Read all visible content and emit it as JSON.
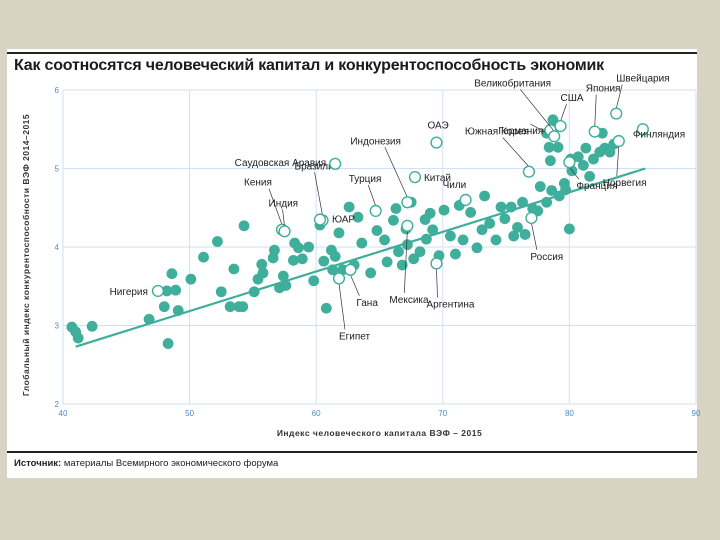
{
  "title": "Как соотносятся человеческий капитал и конкурентоспособность экономик",
  "source": {
    "label": "Источник:",
    "text": "материалы Всемирного экономического форума"
  },
  "colors": {
    "point": "#3fae9a",
    "highlight_fill": "#ffffff",
    "trend": "#3fae9a",
    "grid": "#cfe1f2",
    "tick": "#4a8ec8",
    "leader": "#333333"
  },
  "chart_data": {
    "type": "scatter",
    "xlabel": "Индекс человеческого капитала ВЭФ – 2015",
    "ylabel": "Глобальный индекс конкурентоспособности ВЭФ 2014–2015",
    "xlim": [
      40,
      90
    ],
    "ylim": [
      2,
      6
    ],
    "xticks": [
      "40",
      "50",
      "60",
      "70",
      "80",
      "90"
    ],
    "yticks": [
      "2",
      "3",
      "4",
      "5",
      "6"
    ],
    "grid": true,
    "trendline": {
      "x": [
        41,
        86
      ],
      "y": [
        2.73,
        5.0
      ]
    },
    "labeled_points": [
      {
        "name": "Нигерия",
        "x": 47.5,
        "y": 3.44
      },
      {
        "name": "Кения",
        "x": 57.3,
        "y": 4.22
      },
      {
        "name": "Индия",
        "x": 57.5,
        "y": 4.2
      },
      {
        "name": "Бразилия",
        "x": 60.5,
        "y": 4.34
      },
      {
        "name": "ЮАР",
        "x": 60.3,
        "y": 4.35
      },
      {
        "name": "Саудовская Аравия",
        "x": 61.5,
        "y": 5.06
      },
      {
        "name": "Египет",
        "x": 61.8,
        "y": 3.6
      },
      {
        "name": "Гана",
        "x": 62.7,
        "y": 3.71
      },
      {
        "name": "Турция",
        "x": 64.7,
        "y": 4.46
      },
      {
        "name": "Индонезия",
        "x": 67.2,
        "y": 4.57
      },
      {
        "name": "Мексика",
        "x": 67.2,
        "y": 4.27
      },
      {
        "name": "Китай",
        "x": 67.8,
        "y": 4.89
      },
      {
        "name": "ОАЭ",
        "x": 69.5,
        "y": 5.33
      },
      {
        "name": "Аргентина",
        "x": 69.5,
        "y": 3.79
      },
      {
        "name": "Чили",
        "x": 71.8,
        "y": 4.6
      },
      {
        "name": "Россия",
        "x": 77.0,
        "y": 4.37
      },
      {
        "name": "Южная Корея",
        "x": 76.8,
        "y": 4.96
      },
      {
        "name": "Германия",
        "x": 78.5,
        "y": 5.49
      },
      {
        "name": "Великобритания",
        "x": 78.8,
        "y": 5.41
      },
      {
        "name": "США",
        "x": 79.3,
        "y": 5.54
      },
      {
        "name": "Франция",
        "x": 80.0,
        "y": 5.08
      },
      {
        "name": "Япония",
        "x": 82.0,
        "y": 5.47
      },
      {
        "name": "Швейцария",
        "x": 83.7,
        "y": 5.7
      },
      {
        "name": "Норвегия",
        "x": 83.9,
        "y": 5.35
      },
      {
        "name": "Финляндия",
        "x": 85.8,
        "y": 5.5
      }
    ],
    "points": [
      [
        40.7,
        2.98
      ],
      [
        41.0,
        2.92
      ],
      [
        41.2,
        2.84
      ],
      [
        42.3,
        2.99
      ],
      [
        46.8,
        3.08
      ],
      [
        48.0,
        3.24
      ],
      [
        48.2,
        3.44
      ],
      [
        48.3,
        2.77
      ],
      [
        48.6,
        3.66
      ],
      [
        48.9,
        3.45
      ],
      [
        49.1,
        3.19
      ],
      [
        50.1,
        3.59
      ],
      [
        51.1,
        3.87
      ],
      [
        52.2,
        4.07
      ],
      [
        52.5,
        3.43
      ],
      [
        53.2,
        3.24
      ],
      [
        53.5,
        3.72
      ],
      [
        53.9,
        3.24
      ],
      [
        54.2,
        3.24
      ],
      [
        54.3,
        4.27
      ],
      [
        55.1,
        3.43
      ],
      [
        55.4,
        3.59
      ],
      [
        55.7,
        3.78
      ],
      [
        55.8,
        3.67
      ],
      [
        56.6,
        3.86
      ],
      [
        56.7,
        3.96
      ],
      [
        57.1,
        3.48
      ],
      [
        57.4,
        3.63
      ],
      [
        57.6,
        3.51
      ],
      [
        58.2,
        3.83
      ],
      [
        58.3,
        4.05
      ],
      [
        58.6,
        3.99
      ],
      [
        58.9,
        3.85
      ],
      [
        59.4,
        4.0
      ],
      [
        59.8,
        3.57
      ],
      [
        60.3,
        4.28
      ],
      [
        60.6,
        3.82
      ],
      [
        60.8,
        3.22
      ],
      [
        61.2,
        3.96
      ],
      [
        61.3,
        3.71
      ],
      [
        61.5,
        3.88
      ],
      [
        61.8,
        4.18
      ],
      [
        62.1,
        3.71
      ],
      [
        62.6,
        4.51
      ],
      [
        63.0,
        3.77
      ],
      [
        63.3,
        4.38
      ],
      [
        63.6,
        4.05
      ],
      [
        64.3,
        3.67
      ],
      [
        64.8,
        4.21
      ],
      [
        65.4,
        4.09
      ],
      [
        65.6,
        3.81
      ],
      [
        66.1,
        4.34
      ],
      [
        66.3,
        4.49
      ],
      [
        66.5,
        3.94
      ],
      [
        66.8,
        3.77
      ],
      [
        67.1,
        4.23
      ],
      [
        67.2,
        4.03
      ],
      [
        67.5,
        4.57
      ],
      [
        67.7,
        3.85
      ],
      [
        68.2,
        3.94
      ],
      [
        68.6,
        4.35
      ],
      [
        68.7,
        4.1
      ],
      [
        69.0,
        4.43
      ],
      [
        69.2,
        4.22
      ],
      [
        69.7,
        3.89
      ],
      [
        70.1,
        4.47
      ],
      [
        70.6,
        4.14
      ],
      [
        71.0,
        3.91
      ],
      [
        71.3,
        4.53
      ],
      [
        71.6,
        4.09
      ],
      [
        72.2,
        4.44
      ],
      [
        72.7,
        3.99
      ],
      [
        73.1,
        4.22
      ],
      [
        73.3,
        4.65
      ],
      [
        73.7,
        4.3
      ],
      [
        74.2,
        4.09
      ],
      [
        74.6,
        4.51
      ],
      [
        74.9,
        4.36
      ],
      [
        75.4,
        4.51
      ],
      [
        75.6,
        4.14
      ],
      [
        75.9,
        4.25
      ],
      [
        76.3,
        4.57
      ],
      [
        76.5,
        4.16
      ],
      [
        77.1,
        4.49
      ],
      [
        77.5,
        4.46
      ],
      [
        77.7,
        4.77
      ],
      [
        78.2,
        4.57
      ],
      [
        78.6,
        4.72
      ],
      [
        79.2,
        4.65
      ],
      [
        79.6,
        4.81
      ],
      [
        79.7,
        4.73
      ],
      [
        80.0,
        4.23
      ],
      [
        80.2,
        4.97
      ],
      [
        80.7,
        5.15
      ],
      [
        81.1,
        5.04
      ],
      [
        81.3,
        5.26
      ],
      [
        81.6,
        4.9
      ],
      [
        81.9,
        5.12
      ],
      [
        82.4,
        5.21
      ],
      [
        82.8,
        5.26
      ],
      [
        83.2,
        5.21
      ],
      [
        82.6,
        5.45
      ],
      [
        83.5,
        5.31
      ],
      [
        78.7,
        5.62
      ],
      [
        78.5,
        5.1
      ],
      [
        79.1,
        5.27
      ],
      [
        78.2,
        5.45
      ],
      [
        78.4,
        5.27
      ],
      [
        80.1,
        5.12
      ]
    ]
  }
}
